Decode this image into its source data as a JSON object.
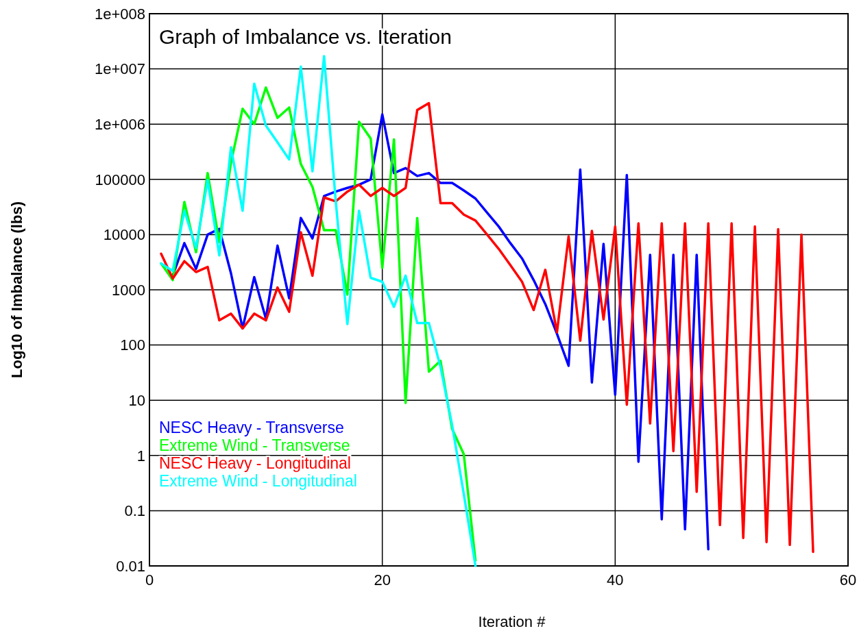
{
  "chart_data": {
    "type": "line",
    "title": "Graph of Imbalance vs. Iteration",
    "xlabel": "Iteration #",
    "ylabel": "Log10 of Imbalance (lbs)",
    "log": "y",
    "grid": true,
    "legend": "bottom left",
    "marker": "none",
    "line_style": "solid",
    "xlim": [
      0,
      60
    ],
    "xticks": [
      0,
      20,
      40,
      60
    ],
    "ylim": [
      0.01,
      100000000
    ],
    "yticks": [
      0.01,
      0.1,
      1,
      10,
      100,
      1000,
      10000,
      100000,
      {
        "value": 1000000,
        "label": "1e+006"
      },
      {
        "value": 10000000,
        "label": "1e+007"
      },
      {
        "value": 100000000,
        "label": "1e+008"
      }
    ],
    "series": [
      {
        "name": "NESC Heavy - Transverse",
        "color": "#0000ff",
        "x": [
          2,
          3,
          4,
          5,
          6,
          7,
          8,
          9,
          10,
          11,
          12,
          13,
          14,
          15,
          16,
          17,
          18,
          19,
          20,
          21,
          22,
          23,
          24,
          25,
          26,
          27,
          28,
          29,
          30,
          31,
          32,
          33,
          34,
          35,
          36,
          37,
          38,
          39,
          40,
          41,
          42,
          43,
          44,
          45,
          46,
          47,
          48
        ],
        "values": [
          1800,
          7000,
          2400,
          10000,
          12700,
          2000,
          200,
          1700,
          300,
          6300,
          700,
          20000,
          8500,
          50000,
          60000,
          70000,
          80000,
          100000,
          1500000,
          130000,
          160000,
          115000,
          130000,
          86000,
          86000,
          63000,
          45000,
          25000,
          14000,
          7000,
          3700,
          1500,
          550,
          160,
          42,
          150000,
          21,
          6800,
          12.6,
          120000,
          0.77,
          4300,
          0.07,
          4300,
          0.046,
          4300,
          0.02
        ]
      },
      {
        "name": "Extreme Wind - Transverse",
        "color": "#00ff00",
        "x": [
          1,
          2,
          3,
          4,
          5,
          6,
          7,
          8,
          9,
          10,
          11,
          12,
          13,
          14,
          15,
          16,
          17,
          18,
          19,
          20,
          21,
          22,
          23,
          24,
          25,
          26,
          27,
          28
        ],
        "values": [
          3000,
          1500,
          39000,
          4800,
          130000,
          7300,
          200000,
          1900000,
          1000000,
          4600000,
          1300000,
          2000000,
          190000,
          73000,
          12000,
          12000,
          820,
          1100000,
          550000,
          2500,
          530000,
          9,
          20000,
          33,
          52,
          3,
          1.05,
          0.0125
        ]
      },
      {
        "name": "NESC Heavy - Longitudinal",
        "color": "#ff0000",
        "x": [
          1,
          2,
          3,
          4,
          5,
          6,
          7,
          8,
          9,
          10,
          11,
          12,
          13,
          14,
          15,
          16,
          17,
          18,
          19,
          20,
          21,
          22,
          23,
          24,
          25,
          26,
          27,
          28,
          29,
          30,
          31,
          32,
          33,
          34,
          35,
          36,
          37,
          38,
          39,
          40,
          41,
          42,
          43,
          44,
          45,
          46,
          47,
          48,
          49,
          50,
          51,
          52,
          53,
          54,
          55,
          56,
          57
        ],
        "values": [
          4500,
          1600,
          3300,
          2100,
          2600,
          280,
          370,
          200,
          370,
          280,
          1100,
          400,
          11000,
          1800,
          47000,
          40000,
          60000,
          80000,
          50000,
          70000,
          50000,
          70000,
          1800000,
          2400000,
          37000,
          37000,
          23000,
          18000,
          10000,
          5500,
          2800,
          1400,
          430,
          2300,
          170,
          9300,
          120,
          11700,
          290,
          14000,
          8.3,
          16000,
          3.8,
          16000,
          1.2,
          16000,
          0.22,
          16000,
          0.055,
          16000,
          0.032,
          14000,
          0.027,
          12500,
          0.024,
          10000,
          0.018
        ]
      },
      {
        "name": "Extreme Wind - Longitudinal",
        "color": "#00ffff",
        "x": [
          1,
          2,
          3,
          4,
          5,
          6,
          7,
          8,
          9,
          10,
          11,
          12,
          13,
          14,
          15,
          16,
          17,
          18,
          19,
          20,
          21,
          22,
          23,
          24,
          25,
          26,
          27,
          28
        ],
        "values": [
          3000,
          2200,
          27000,
          5700,
          97000,
          4200,
          380000,
          27000,
          5400000,
          940000,
          470000,
          230000,
          11000000,
          140000,
          17000000,
          40000,
          240,
          27000,
          1650,
          1400,
          490,
          1800,
          250,
          250,
          40,
          3.5,
          0.2,
          0.01
        ]
      }
    ]
  }
}
